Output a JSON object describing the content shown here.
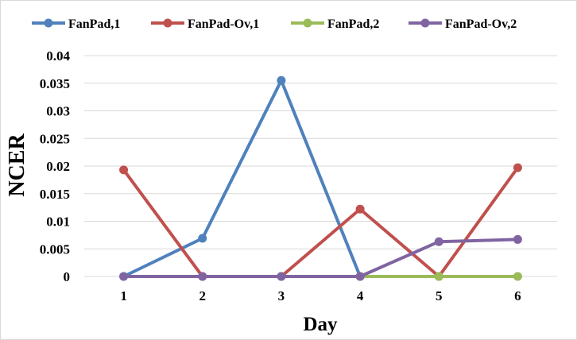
{
  "chart_data": {
    "type": "line",
    "xlabel": "Day",
    "ylabel": "NCER",
    "x": [
      1,
      2,
      3,
      4,
      5,
      6
    ],
    "x_tick_labels": [
      "1",
      "2",
      "3",
      "4",
      "5",
      "6"
    ],
    "ylim": [
      0,
      0.04
    ],
    "y_tick_labels": [
      "0",
      "0.005",
      "0.01",
      "0.015",
      "0.02",
      "0.025",
      "0.03",
      "0.035",
      "0.04"
    ],
    "grid": "horizontal",
    "legend_position": "top",
    "series": [
      {
        "name": "FanPad,1",
        "color": "#4f81bd",
        "values": [
          0,
          0.0069,
          0.0355,
          0,
          null,
          null
        ]
      },
      {
        "name": "FanPad-Ov,1",
        "color": "#c0504d",
        "values": [
          0.0193,
          0,
          0,
          0.0122,
          0,
          0.0197
        ]
      },
      {
        "name": "FanPad,2",
        "color": "#9bbb59",
        "values": [
          null,
          null,
          null,
          0,
          0,
          0
        ]
      },
      {
        "name": "FanPad-Ov,2",
        "color": "#8064a2",
        "values": [
          0,
          0,
          0,
          0,
          0.0063,
          0.0067
        ]
      }
    ]
  }
}
